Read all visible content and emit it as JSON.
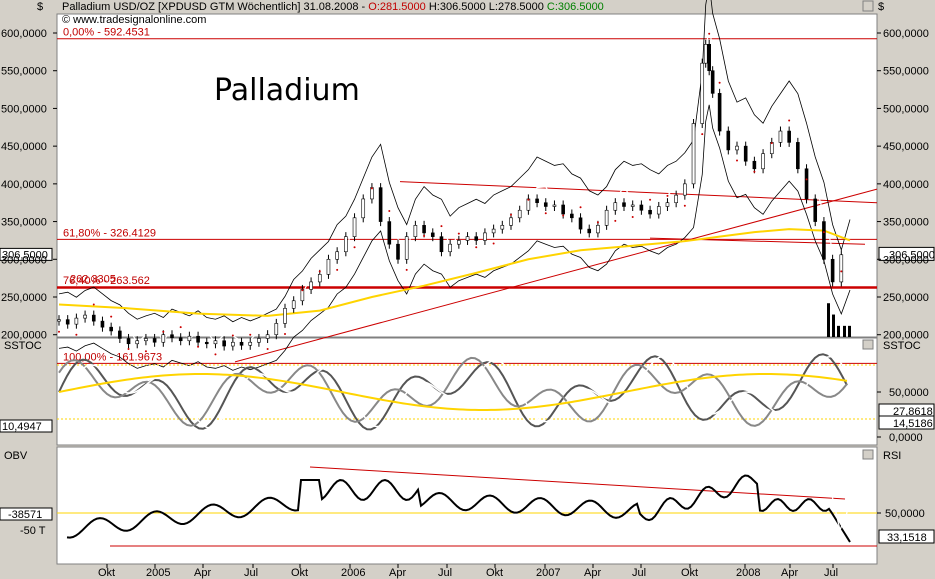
{
  "header": {
    "currency_left": "$",
    "currency_right": "$",
    "title_prefix": "Palladium USD/OZ [XPDUSD GTM  Wöchentlich] 31.08.2008 - ",
    "open": "O:281.5000",
    "high": "H:306.5000",
    "low": "L:278.5000",
    "close": "C:306.5000",
    "copyright": "© www.tradesignalonline.com"
  },
  "chart_data": [
    {
      "type": "line",
      "name": "price-panel",
      "big_title": "Palladium",
      "ylim": [
        145,
        615
      ],
      "y_ticks": [
        "600,0000",
        "550,0000",
        "500,0000",
        "450,0000",
        "400,0000",
        "350,0000",
        "300,0000",
        "250,0000",
        "200,0000"
      ],
      "y_tick_values": [
        600,
        550,
        500,
        450,
        400,
        350,
        300,
        250,
        200
      ],
      "last_price_label": "306,5000",
      "last_price_left": "306,5000",
      "fib_levels": [
        {
          "label": "0,00% - 592.4531",
          "value": 592.4531
        },
        {
          "label": "61,80% - 326.4129",
          "value": 326.4129
        },
        {
          "label": "76,40% - 263.562",
          "value": 263.562
        },
        {
          "label": "100,00% - 161.9673",
          "value": 161.9673
        }
      ],
      "support_label": "262.3305",
      "support_value": 262.3305,
      "x_labels": [
        "Okt",
        "2005",
        "Apr",
        "Jul",
        "Okt",
        "2006",
        "Apr",
        "Jul",
        "Okt",
        "2007",
        "Apr",
        "Jul",
        "Okt",
        "2008",
        "Apr",
        "Jul"
      ],
      "price_points": [
        [
          0,
          218
        ],
        [
          5,
          220
        ],
        [
          10,
          214
        ],
        [
          15,
          222
        ],
        [
          20,
          226
        ],
        [
          25,
          218
        ],
        [
          30,
          210
        ],
        [
          35,
          205
        ],
        [
          40,
          195
        ],
        [
          45,
          188
        ],
        [
          50,
          192
        ],
        [
          55,
          195
        ],
        [
          60,
          190
        ],
        [
          65,
          200
        ],
        [
          70,
          196
        ],
        [
          75,
          192
        ],
        [
          80,
          198
        ],
        [
          85,
          190
        ],
        [
          90,
          188
        ],
        [
          95,
          192
        ],
        [
          100,
          185
        ],
        [
          105,
          190
        ],
        [
          110,
          186
        ],
        [
          115,
          190
        ],
        [
          120,
          195
        ],
        [
          125,
          200
        ],
        [
          130,
          215
        ],
        [
          135,
          235
        ],
        [
          140,
          245
        ],
        [
          145,
          260
        ],
        [
          150,
          270
        ],
        [
          155,
          280
        ],
        [
          160,
          300
        ],
        [
          165,
          310
        ],
        [
          170,
          330
        ],
        [
          175,
          355
        ],
        [
          180,
          380
        ],
        [
          185,
          395
        ],
        [
          190,
          350
        ],
        [
          195,
          320
        ],
        [
          200,
          300
        ],
        [
          205,
          330
        ],
        [
          210,
          345
        ],
        [
          215,
          335
        ],
        [
          220,
          330
        ],
        [
          225,
          310
        ],
        [
          230,
          320
        ],
        [
          235,
          325
        ],
        [
          240,
          330
        ],
        [
          245,
          325
        ],
        [
          250,
          335
        ],
        [
          255,
          340
        ],
        [
          260,
          345
        ],
        [
          265,
          355
        ],
        [
          270,
          365
        ],
        [
          275,
          380
        ],
        [
          280,
          375
        ],
        [
          285,
          370
        ],
        [
          290,
          372
        ],
        [
          295,
          360
        ],
        [
          300,
          355
        ],
        [
          305,
          340
        ],
        [
          310,
          335
        ],
        [
          315,
          345
        ],
        [
          320,
          365
        ],
        [
          325,
          375
        ],
        [
          330,
          370
        ],
        [
          335,
          372
        ],
        [
          340,
          365
        ],
        [
          345,
          360
        ],
        [
          350,
          370
        ],
        [
          355,
          375
        ],
        [
          360,
          385
        ],
        [
          365,
          400
        ],
        [
          370,
          480
        ],
        [
          372,
          560
        ],
        [
          374,
          585
        ],
        [
          376,
          550
        ],
        [
          380,
          520
        ],
        [
          385,
          470
        ],
        [
          390,
          445
        ],
        [
          395,
          450
        ],
        [
          400,
          430
        ],
        [
          405,
          420
        ],
        [
          410,
          440
        ],
        [
          415,
          455
        ],
        [
          420,
          470
        ],
        [
          425,
          455
        ],
        [
          430,
          420
        ],
        [
          435,
          380
        ],
        [
          440,
          350
        ],
        [
          445,
          300
        ],
        [
          450,
          270
        ],
        [
          455,
          306
        ]
      ],
      "sma_yellow": [
        [
          0,
          240
        ],
        [
          40,
          235
        ],
        [
          80,
          228
        ],
        [
          120,
          225
        ],
        [
          150,
          232
        ],
        [
          180,
          250
        ],
        [
          210,
          265
        ],
        [
          240,
          282
        ],
        [
          270,
          300
        ],
        [
          300,
          312
        ],
        [
          330,
          318
        ],
        [
          360,
          324
        ],
        [
          380,
          330
        ],
        [
          400,
          336
        ],
        [
          420,
          340
        ],
        [
          440,
          338
        ],
        [
          455,
          325
        ]
      ],
      "series": [
        {
          "name": "Kerzen",
          "color": "#000000"
        },
        {
          "name": "SMA",
          "color": "#ffd400"
        },
        {
          "name": "Parabolic SAR",
          "color": "#cc0000"
        },
        {
          "name": "Bollinger",
          "color": "#000000"
        }
      ]
    },
    {
      "type": "line",
      "name": "sstoc-panel",
      "label_left": "SSTOC",
      "label_right": "SSTOC",
      "ylim": [
        -5,
        95
      ],
      "y_ticks": [
        "50,0000",
        "0,0000"
      ],
      "y_tick_values": [
        50,
        0
      ],
      "value_labels": [
        "27,8618",
        "14,5186"
      ],
      "left_value": "10,4947",
      "upper_band": 80,
      "lower_band": 20
    },
    {
      "type": "line",
      "name": "obv-rsi-panel",
      "label_left": "OBV",
      "label_right": "RSI",
      "left_ticks": [
        "-38571",
        "-50 T"
      ],
      "y_ticks": [
        "50,0000"
      ],
      "value_label": "33,1518"
    }
  ],
  "colors": {
    "background": "#ffffff",
    "frame": "#d4d0c8",
    "fib_line": "#cc0000",
    "sma": "#ffd400",
    "value_box": "#ffffff"
  }
}
